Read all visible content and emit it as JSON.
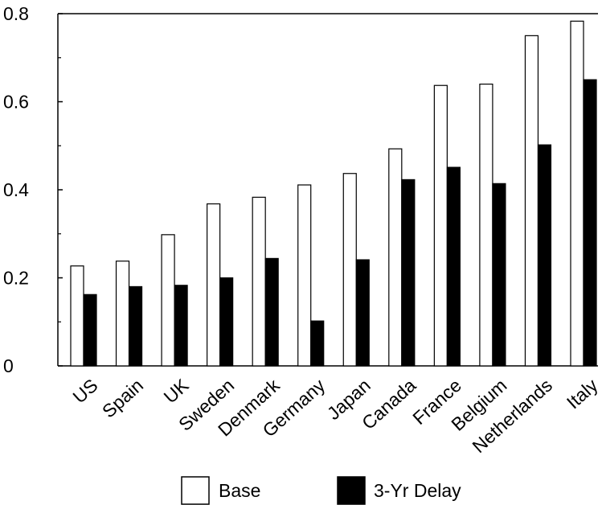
{
  "chart_data": {
    "type": "bar",
    "categories": [
      "US",
      "Spain",
      "UK",
      "Sweden",
      "Denmark",
      "Germany",
      "Japan",
      "Canada",
      "France",
      "Belgium",
      "Netherlands",
      "Italy"
    ],
    "series": [
      {
        "name": "Base",
        "color": "#ffffff",
        "values": [
          0.227,
          0.238,
          0.298,
          0.368,
          0.383,
          0.411,
          0.437,
          0.493,
          0.637,
          0.64,
          0.75,
          0.783
        ]
      },
      {
        "name": "3-Yr Delay",
        "color": "#000000",
        "values": [
          0.162,
          0.18,
          0.183,
          0.2,
          0.244,
          0.102,
          0.241,
          0.423,
          0.451,
          0.414,
          0.502,
          0.65
        ]
      }
    ],
    "ylim": [
      0,
      0.8
    ],
    "yticks": [
      0,
      0.2,
      0.4,
      0.6,
      0.8
    ],
    "ytick_labels": [
      "0",
      "0.2",
      "0.4",
      "0.6",
      "0.8"
    ],
    "title": "",
    "xlabel": "",
    "ylabel": "",
    "legend": {
      "placement": "bottom"
    },
    "grid": false
  }
}
